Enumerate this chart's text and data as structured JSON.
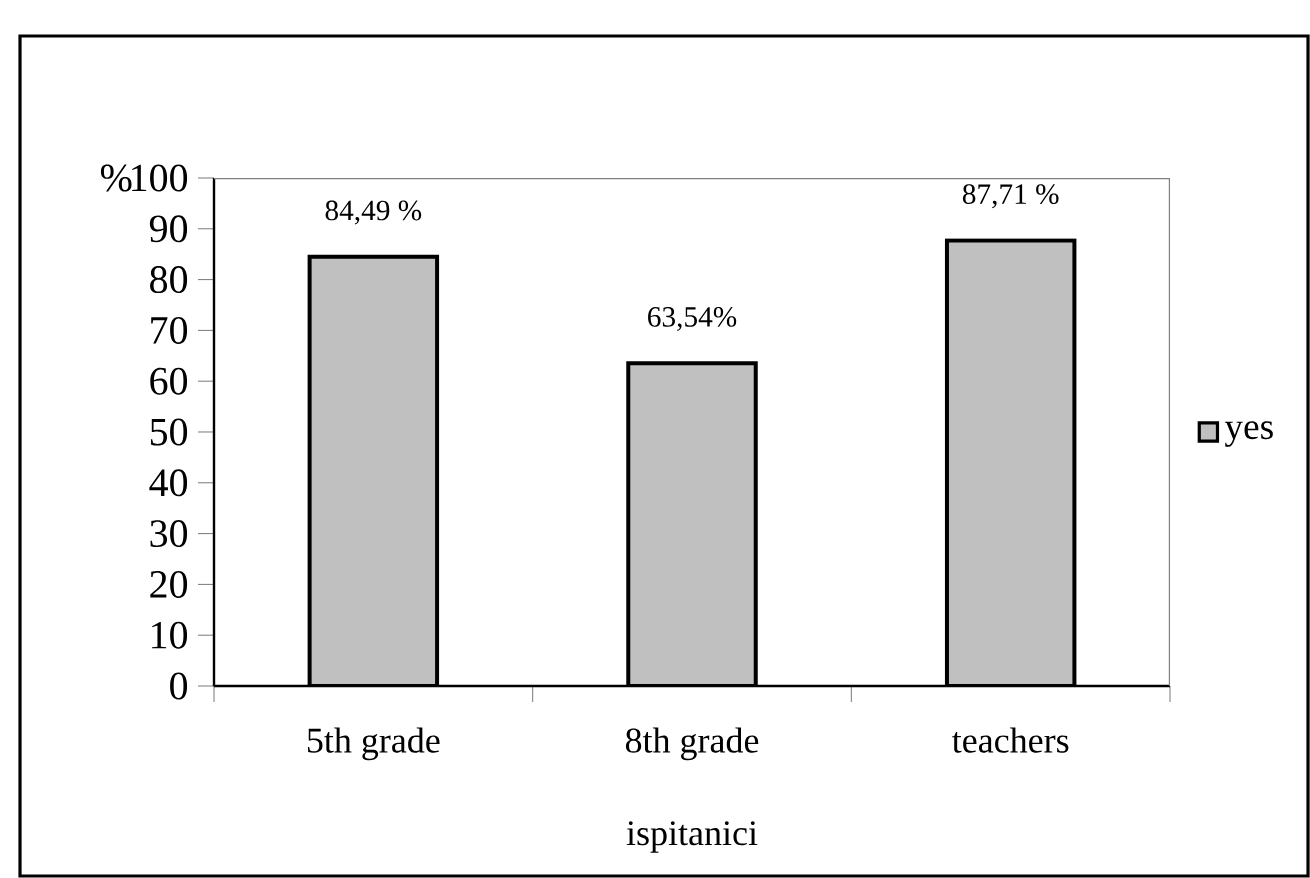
{
  "chart_data": {
    "type": "bar",
    "xlabel": "ispitanici",
    "ylabel": "%",
    "categories": [
      "5th grade",
      "8th grade",
      "teachers"
    ],
    "series": [
      {
        "name": "yes",
        "color": "#c0c0c0",
        "values": [
          84.49,
          63.54,
          87.71
        ],
        "value_labels": [
          "84,49 %",
          "63,54%",
          "87,71 %"
        ]
      }
    ],
    "ylim": [
      0,
      100
    ],
    "yticks": [
      0,
      10,
      20,
      30,
      40,
      50,
      60,
      70,
      80,
      90,
      100
    ],
    "legend": "right"
  }
}
